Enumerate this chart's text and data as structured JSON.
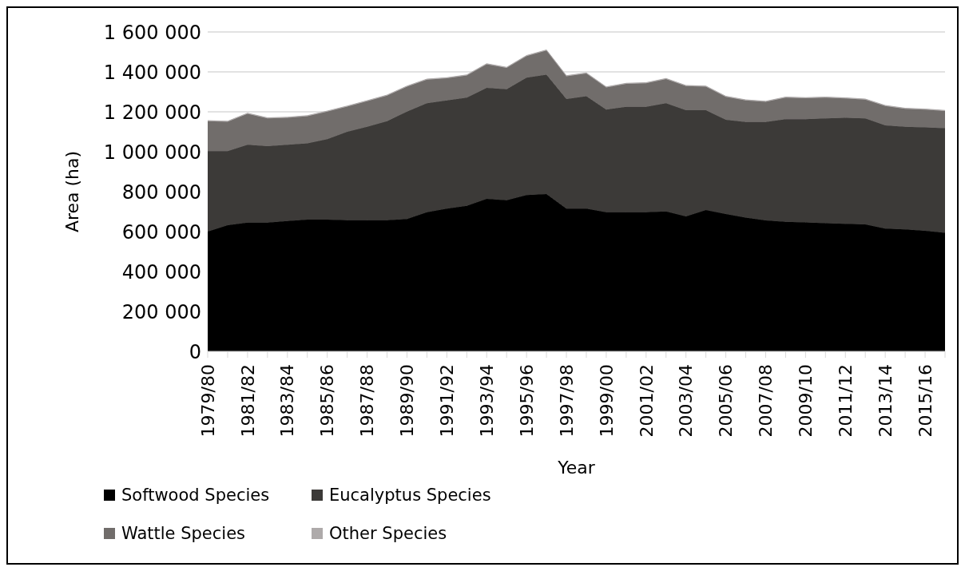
{
  "chart_data": {
    "type": "area",
    "stacked": true,
    "xlabel": "Year",
    "ylabel": "Area (ha)",
    "categories": [
      "1979/80",
      null,
      "1981/82",
      null,
      "1983/84",
      null,
      "1985/86",
      null,
      "1987/88",
      null,
      "1989/90",
      null,
      "1991/92",
      null,
      "1993/94",
      null,
      "1995/96",
      null,
      "1997/98",
      null,
      "1999/00",
      null,
      "2001/02",
      null,
      "2003/04",
      null,
      "2005/06",
      null,
      "2007/08",
      null,
      "2009/10",
      null,
      "2011/12",
      null,
      "2013/14",
      null,
      "2015/16",
      null
    ],
    "series": [
      {
        "name": "Softwood Species",
        "color": "#000000",
        "values": [
          600000,
          632000,
          645000,
          645000,
          653000,
          660000,
          660000,
          657000,
          657000,
          657000,
          663000,
          697000,
          715000,
          729000,
          764000,
          757000,
          783000,
          788000,
          715000,
          715000,
          697000,
          697000,
          697000,
          701000,
          676000,
          708000,
          688000,
          670000,
          656000,
          649000,
          646000,
          642000,
          639000,
          636000,
          615000,
          611000,
          604000,
          594000
        ]
      },
      {
        "name": "Eucalyptus Species",
        "color": "#3c3a38",
        "values": [
          403000,
          371000,
          390000,
          383000,
          382000,
          382000,
          403000,
          443000,
          468000,
          496000,
          538000,
          546000,
          542000,
          542000,
          556000,
          556000,
          588000,
          598000,
          549000,
          563000,
          514000,
          528000,
          528000,
          542000,
          532000,
          500000,
          472000,
          479000,
          493000,
          514000,
          517000,
          525000,
          531000,
          531000,
          517000,
          514000,
          518000,
          524000
        ]
      },
      {
        "name": "Wattle Species",
        "color": "#716d6b",
        "values": [
          150000,
          147000,
          155000,
          139000,
          135000,
          136000,
          138000,
          126000,
          128000,
          128000,
          125000,
          118000,
          111000,
          111000,
          118000,
          107000,
          108000,
          121000,
          114000,
          114000,
          111000,
          115000,
          118000,
          121000,
          121000,
          118000,
          115000,
          108000,
          101000,
          108000,
          105000,
          104000,
          97000,
          94000,
          97000,
          90000,
          89000,
          86000
        ]
      },
      {
        "name": "Other Species",
        "color": "#aeaaaa",
        "values": [
          3000,
          3000,
          3000,
          3000,
          3000,
          3000,
          3000,
          3000,
          3000,
          3000,
          3000,
          3000,
          3000,
          3000,
          3000,
          3000,
          3000,
          3000,
          3000,
          3000,
          3000,
          3000,
          3000,
          3000,
          3000,
          3000,
          3000,
          3000,
          3000,
          3000,
          3000,
          3000,
          3000,
          3000,
          3000,
          3000,
          3000,
          3000
        ]
      }
    ],
    "ylim": [
      0,
      1600000
    ],
    "yticks": [
      {
        "value": 0,
        "label": "0"
      },
      {
        "value": 200000,
        "label": "200 000"
      },
      {
        "value": 400000,
        "label": "400 000"
      },
      {
        "value": 600000,
        "label": "600 000"
      },
      {
        "value": 800000,
        "label": "800 000"
      },
      {
        "value": 1000000,
        "label": "1 000 000"
      },
      {
        "value": 1200000,
        "label": "1 200 000"
      },
      {
        "value": 1400000,
        "label": "1 400 000"
      },
      {
        "value": 1600000,
        "label": "1 600 000"
      }
    ],
    "grid": "y",
    "legend": "bottom"
  }
}
